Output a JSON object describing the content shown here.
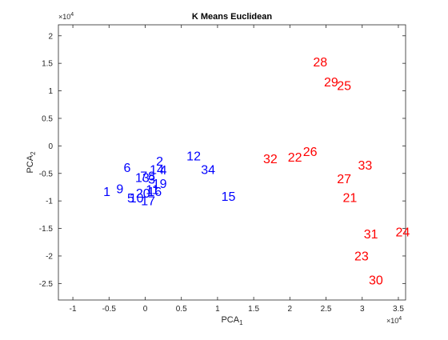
{
  "chart_data": {
    "type": "scatter",
    "title": "K Means Euclidean",
    "xlabel_main": "PCA",
    "xlabel_sub": "1",
    "ylabel_main": "PCA",
    "ylabel_sub": "2",
    "x_exponent_label": "×10",
    "x_exponent_power": "4",
    "y_exponent_label": "×10",
    "y_exponent_power": "4",
    "xlim": [
      -1.2,
      3.6
    ],
    "ylim": [
      -2.8,
      2.2
    ],
    "xticks": [
      -1,
      -0.5,
      0,
      0.5,
      1,
      1.5,
      2,
      2.5,
      3,
      3.5
    ],
    "xtick_labels": [
      "-1",
      "-0.5",
      "0",
      "0.5",
      "1",
      "1.5",
      "2",
      "2.5",
      "3",
      "3.5"
    ],
    "yticks": [
      -2.5,
      -2,
      -1.5,
      -1,
      -0.5,
      0,
      0.5,
      1,
      1.5,
      2
    ],
    "ytick_labels": [
      "-2.5",
      "-2",
      "-1.5",
      "-1",
      "-0.5",
      "0",
      "0.5",
      "1",
      "1.5",
      "2"
    ],
    "grid": false,
    "series": [
      {
        "color": "#0000ff",
        "points": [
          {
            "label": "1",
            "x": -0.53,
            "y": -0.82
          },
          {
            "label": "9",
            "x": -0.35,
            "y": -0.77
          },
          {
            "label": "6",
            "x": -0.25,
            "y": -0.39
          },
          {
            "label": "5",
            "x": -0.2,
            "y": -0.94
          },
          {
            "label": "10",
            "x": -0.12,
            "y": -0.94
          },
          {
            "label": "20",
            "x": -0.03,
            "y": -0.85
          },
          {
            "label": "17",
            "x": 0.04,
            "y": -0.99
          },
          {
            "label": "13",
            "x": -0.04,
            "y": -0.57
          },
          {
            "label": "7",
            "x": -0.02,
            "y": -0.54
          },
          {
            "label": "8",
            "x": 0.09,
            "y": -0.54
          },
          {
            "label": "3",
            "x": 0.09,
            "y": -0.6
          },
          {
            "label": "11",
            "x": 0.1,
            "y": -0.79
          },
          {
            "label": "16",
            "x": 0.13,
            "y": -0.82
          },
          {
            "label": "14",
            "x": 0.16,
            "y": -0.42
          },
          {
            "label": "19",
            "x": 0.2,
            "y": -0.68
          },
          {
            "label": "4",
            "x": 0.25,
            "y": -0.43
          },
          {
            "label": "2",
            "x": 0.2,
            "y": -0.27
          },
          {
            "label": "12",
            "x": 0.67,
            "y": -0.18
          },
          {
            "label": "34",
            "x": 0.87,
            "y": -0.42
          },
          {
            "label": "15",
            "x": 1.15,
            "y": -0.91
          }
        ]
      },
      {
        "color": "#ff0000",
        "points": [
          {
            "label": "28",
            "x": 2.42,
            "y": 1.53
          },
          {
            "label": "29",
            "x": 2.57,
            "y": 1.17
          },
          {
            "label": "25",
            "x": 2.75,
            "y": 1.1
          },
          {
            "label": "26",
            "x": 2.28,
            "y": -0.1
          },
          {
            "label": "22",
            "x": 2.07,
            "y": -0.2
          },
          {
            "label": "32",
            "x": 1.73,
            "y": -0.23
          },
          {
            "label": "33",
            "x": 3.04,
            "y": -0.34
          },
          {
            "label": "27",
            "x": 2.75,
            "y": -0.59
          },
          {
            "label": "21",
            "x": 2.83,
            "y": -0.93
          },
          {
            "label": "24",
            "x": 3.56,
            "y": -1.56
          },
          {
            "label": "31",
            "x": 3.12,
            "y": -1.59
          },
          {
            "label": "23",
            "x": 2.99,
            "y": -1.99
          },
          {
            "label": "30",
            "x": 3.19,
            "y": -2.43
          }
        ]
      }
    ]
  }
}
